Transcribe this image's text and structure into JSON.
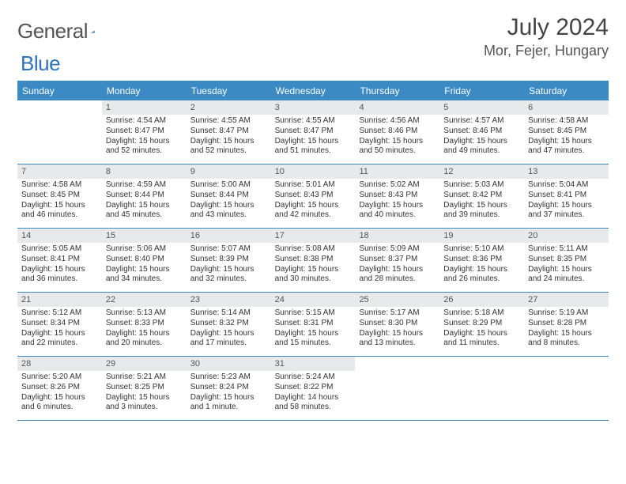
{
  "logo": {
    "text1": "General",
    "text2": "Blue"
  },
  "title": {
    "month": "July 2024",
    "location": "Mor, Fejer, Hungary"
  },
  "colors": {
    "header_bg": "#3b8ac4",
    "header_text": "#ffffff",
    "daynum_bg": "#e7e9ea",
    "border": "#3b8ac4",
    "text": "#333333"
  },
  "day_names": [
    "Sunday",
    "Monday",
    "Tuesday",
    "Wednesday",
    "Thursday",
    "Friday",
    "Saturday"
  ],
  "weeks": [
    [
      {
        "n": "",
        "l": []
      },
      {
        "n": "1",
        "l": [
          "Sunrise: 4:54 AM",
          "Sunset: 8:47 PM",
          "Daylight: 15 hours and 52 minutes."
        ]
      },
      {
        "n": "2",
        "l": [
          "Sunrise: 4:55 AM",
          "Sunset: 8:47 PM",
          "Daylight: 15 hours and 52 minutes."
        ]
      },
      {
        "n": "3",
        "l": [
          "Sunrise: 4:55 AM",
          "Sunset: 8:47 PM",
          "Daylight: 15 hours and 51 minutes."
        ]
      },
      {
        "n": "4",
        "l": [
          "Sunrise: 4:56 AM",
          "Sunset: 8:46 PM",
          "Daylight: 15 hours and 50 minutes."
        ]
      },
      {
        "n": "5",
        "l": [
          "Sunrise: 4:57 AM",
          "Sunset: 8:46 PM",
          "Daylight: 15 hours and 49 minutes."
        ]
      },
      {
        "n": "6",
        "l": [
          "Sunrise: 4:58 AM",
          "Sunset: 8:45 PM",
          "Daylight: 15 hours and 47 minutes."
        ]
      }
    ],
    [
      {
        "n": "7",
        "l": [
          "Sunrise: 4:58 AM",
          "Sunset: 8:45 PM",
          "Daylight: 15 hours and 46 minutes."
        ]
      },
      {
        "n": "8",
        "l": [
          "Sunrise: 4:59 AM",
          "Sunset: 8:44 PM",
          "Daylight: 15 hours and 45 minutes."
        ]
      },
      {
        "n": "9",
        "l": [
          "Sunrise: 5:00 AM",
          "Sunset: 8:44 PM",
          "Daylight: 15 hours and 43 minutes."
        ]
      },
      {
        "n": "10",
        "l": [
          "Sunrise: 5:01 AM",
          "Sunset: 8:43 PM",
          "Daylight: 15 hours and 42 minutes."
        ]
      },
      {
        "n": "11",
        "l": [
          "Sunrise: 5:02 AM",
          "Sunset: 8:43 PM",
          "Daylight: 15 hours and 40 minutes."
        ]
      },
      {
        "n": "12",
        "l": [
          "Sunrise: 5:03 AM",
          "Sunset: 8:42 PM",
          "Daylight: 15 hours and 39 minutes."
        ]
      },
      {
        "n": "13",
        "l": [
          "Sunrise: 5:04 AM",
          "Sunset: 8:41 PM",
          "Daylight: 15 hours and 37 minutes."
        ]
      }
    ],
    [
      {
        "n": "14",
        "l": [
          "Sunrise: 5:05 AM",
          "Sunset: 8:41 PM",
          "Daylight: 15 hours and 36 minutes."
        ]
      },
      {
        "n": "15",
        "l": [
          "Sunrise: 5:06 AM",
          "Sunset: 8:40 PM",
          "Daylight: 15 hours and 34 minutes."
        ]
      },
      {
        "n": "16",
        "l": [
          "Sunrise: 5:07 AM",
          "Sunset: 8:39 PM",
          "Daylight: 15 hours and 32 minutes."
        ]
      },
      {
        "n": "17",
        "l": [
          "Sunrise: 5:08 AM",
          "Sunset: 8:38 PM",
          "Daylight: 15 hours and 30 minutes."
        ]
      },
      {
        "n": "18",
        "l": [
          "Sunrise: 5:09 AM",
          "Sunset: 8:37 PM",
          "Daylight: 15 hours and 28 minutes."
        ]
      },
      {
        "n": "19",
        "l": [
          "Sunrise: 5:10 AM",
          "Sunset: 8:36 PM",
          "Daylight: 15 hours and 26 minutes."
        ]
      },
      {
        "n": "20",
        "l": [
          "Sunrise: 5:11 AM",
          "Sunset: 8:35 PM",
          "Daylight: 15 hours and 24 minutes."
        ]
      }
    ],
    [
      {
        "n": "21",
        "l": [
          "Sunrise: 5:12 AM",
          "Sunset: 8:34 PM",
          "Daylight: 15 hours and 22 minutes."
        ]
      },
      {
        "n": "22",
        "l": [
          "Sunrise: 5:13 AM",
          "Sunset: 8:33 PM",
          "Daylight: 15 hours and 20 minutes."
        ]
      },
      {
        "n": "23",
        "l": [
          "Sunrise: 5:14 AM",
          "Sunset: 8:32 PM",
          "Daylight: 15 hours and 17 minutes."
        ]
      },
      {
        "n": "24",
        "l": [
          "Sunrise: 5:15 AM",
          "Sunset: 8:31 PM",
          "Daylight: 15 hours and 15 minutes."
        ]
      },
      {
        "n": "25",
        "l": [
          "Sunrise: 5:17 AM",
          "Sunset: 8:30 PM",
          "Daylight: 15 hours and 13 minutes."
        ]
      },
      {
        "n": "26",
        "l": [
          "Sunrise: 5:18 AM",
          "Sunset: 8:29 PM",
          "Daylight: 15 hours and 11 minutes."
        ]
      },
      {
        "n": "27",
        "l": [
          "Sunrise: 5:19 AM",
          "Sunset: 8:28 PM",
          "Daylight: 15 hours and 8 minutes."
        ]
      }
    ],
    [
      {
        "n": "28",
        "l": [
          "Sunrise: 5:20 AM",
          "Sunset: 8:26 PM",
          "Daylight: 15 hours and 6 minutes."
        ]
      },
      {
        "n": "29",
        "l": [
          "Sunrise: 5:21 AM",
          "Sunset: 8:25 PM",
          "Daylight: 15 hours and 3 minutes."
        ]
      },
      {
        "n": "30",
        "l": [
          "Sunrise: 5:23 AM",
          "Sunset: 8:24 PM",
          "Daylight: 15 hours and 1 minute."
        ]
      },
      {
        "n": "31",
        "l": [
          "Sunrise: 5:24 AM",
          "Sunset: 8:22 PM",
          "Daylight: 14 hours and 58 minutes."
        ]
      },
      {
        "n": "",
        "l": []
      },
      {
        "n": "",
        "l": []
      },
      {
        "n": "",
        "l": []
      }
    ]
  ]
}
